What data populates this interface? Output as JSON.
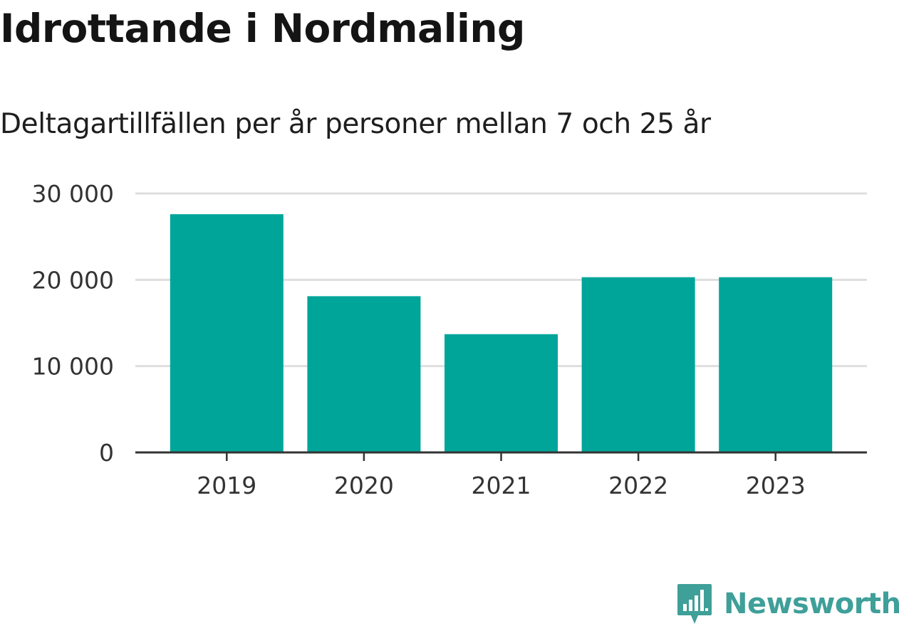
{
  "title": "Idrottande i Nordmaling",
  "subtitle": "Deltagartillfällen per år personer mellan 7 och 25 år",
  "brand": {
    "name": "Newsworthy",
    "color": "#3f9f99",
    "icon": "newsworthy-logo-icon"
  },
  "colors": {
    "bar": "#00a59a",
    "grid": "#dedede",
    "axis": "#333333",
    "tick_text": "#333333"
  },
  "chart_data": {
    "type": "bar",
    "categories": [
      "2019",
      "2020",
      "2021",
      "2022",
      "2023"
    ],
    "values": [
      27600,
      18100,
      13700,
      20300,
      20300
    ],
    "ylim": [
      0,
      30000
    ],
    "yticks": [
      0,
      10000,
      20000,
      30000
    ],
    "ytick_labels": [
      "0",
      "10 000",
      "20 000",
      "30 000"
    ],
    "grid": true,
    "legend": "none",
    "xlabel": "",
    "ylabel": ""
  }
}
